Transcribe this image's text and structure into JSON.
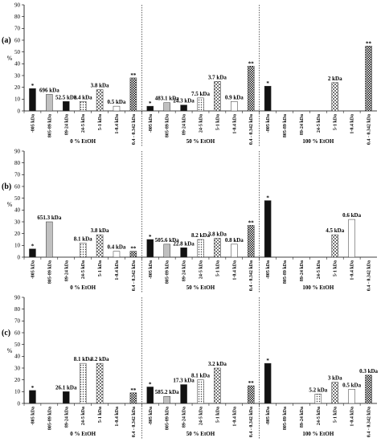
{
  "chart_data": [
    {
      "type": "bar",
      "panel_label": "(a)",
      "ylabel": "%",
      "ylim": [
        0,
        90
      ],
      "yticks": [
        0,
        10,
        20,
        30,
        40,
        50,
        60,
        70,
        80,
        90
      ],
      "categories": [
        "-805 kDa",
        "805-89 kDa",
        "89-24 kDa",
        "24-5 kDa",
        "5-1 kDa",
        "1-0.4 kDa",
        "0.4 - 0.342 kDa"
      ],
      "groups": [
        {
          "name": "0 % EtOH",
          "values": [
            19,
            14,
            8,
            8,
            18,
            4,
            28
          ],
          "labels": [
            "",
            "696 kDa",
            "52.5 kDa",
            "8.4 kDa",
            "3.8 kDa",
            "0.5 kDa",
            ""
          ],
          "marks": [
            "*",
            "",
            "",
            "",
            "",
            "",
            "**"
          ]
        },
        {
          "name": "50 % EtOH",
          "values": [
            4,
            7,
            5,
            11,
            25,
            8,
            38
          ],
          "labels": [
            "",
            "483.1 kDa",
            "24.3 kDa",
            "7.5 kDa",
            "3.7 kDa",
            "0.9 kDa",
            ""
          ],
          "marks": [
            "*",
            "",
            "",
            "",
            "",
            "",
            "**"
          ]
        },
        {
          "name": "100 % EtOH",
          "values": [
            21,
            0,
            0,
            0,
            24,
            0,
            55
          ],
          "labels": [
            "",
            "",
            "",
            "",
            "2 kDa",
            "",
            ""
          ],
          "marks": [
            "*",
            "",
            "",
            "",
            "",
            "",
            "**"
          ]
        }
      ]
    },
    {
      "type": "bar",
      "panel_label": "(b)",
      "ylabel": "%",
      "ylim": [
        0,
        90
      ],
      "yticks": [
        0,
        10,
        20,
        30,
        40,
        50,
        60,
        70,
        80,
        90
      ],
      "categories": [
        "-805 kDa",
        "805-89 kDa",
        "89-24 kDa",
        "24-5 kDa",
        "5-1 kDa",
        "1-0.4 kDa",
        "0.4 - 0.342 kDa"
      ],
      "groups": [
        {
          "name": "0 % EtOH",
          "values": [
            7,
            30,
            0,
            12,
            19,
            5,
            5
          ],
          "labels": [
            "",
            "651.3 kDa",
            "",
            "8.1 kDa",
            "3.8 kDa",
            "0.4 kDa",
            ""
          ],
          "marks": [
            "*",
            "",
            "",
            "",
            "",
            "",
            "**"
          ]
        },
        {
          "name": "50 % EtOH",
          "values": [
            15,
            11,
            8,
            15,
            16,
            11,
            27
          ],
          "labels": [
            "",
            "505.6 kDa",
            "22.8 kDa",
            "8.2 kDa",
            "3.8 kDa",
            "0.8 kDa",
            ""
          ],
          "marks": [
            "*",
            "",
            "",
            "",
            "",
            "",
            "**"
          ]
        },
        {
          "name": "100 % EtOH",
          "values": [
            48,
            0,
            0,
            0,
            19,
            32,
            0
          ],
          "labels": [
            "",
            "",
            "",
            "",
            "4.5 kDa",
            "0.6 kDa",
            ""
          ],
          "marks": [
            "*",
            "",
            "",
            "",
            "",
            "",
            ""
          ]
        }
      ]
    },
    {
      "type": "bar",
      "panel_label": "(c)",
      "ylabel": "%",
      "ylim": [
        0,
        90
      ],
      "yticks": [
        0,
        10,
        20,
        30,
        40,
        50,
        60,
        70,
        80,
        90
      ],
      "categories": [
        "-805 kDa",
        "805-89 kDa",
        "89-24 kDa",
        "24-5 kDa",
        "5-1 kDa",
        "1-0.4 kDa",
        "0.4 - 0.342 kDa"
      ],
      "groups": [
        {
          "name": "0 % EtOH",
          "values": [
            11,
            0,
            10,
            34,
            34,
            0,
            9
          ],
          "labels": [
            "",
            "",
            "26.1 kDa",
            "8.1 kDa",
            "3.2 kDa",
            "",
            ""
          ],
          "marks": [
            "*",
            "",
            "",
            "",
            "",
            "",
            "**"
          ]
        },
        {
          "name": "50 % EtOH",
          "values": [
            14,
            6,
            16,
            20,
            30,
            0,
            15
          ],
          "labels": [
            "",
            "585.2 kDa",
            "17.3 kDa",
            "8.1 kDa",
            "3.2 kDa",
            "",
            ""
          ],
          "marks": [
            "*",
            "",
            "",
            "",
            "",
            "",
            "**"
          ]
        },
        {
          "name": "100 % EtOH",
          "values": [
            34,
            0,
            0,
            8,
            18,
            12,
            24
          ],
          "labels": [
            "",
            "",
            "",
            "5.2 kDa",
            "3 kDa",
            "0.5 kDa",
            "0.3 kDa"
          ],
          "marks": [
            "*",
            "",
            "",
            "",
            "",
            "",
            ""
          ]
        }
      ]
    }
  ],
  "colors": {
    "dark": "#111111",
    "grey": "#c0c0c0",
    "text": "#000000"
  }
}
